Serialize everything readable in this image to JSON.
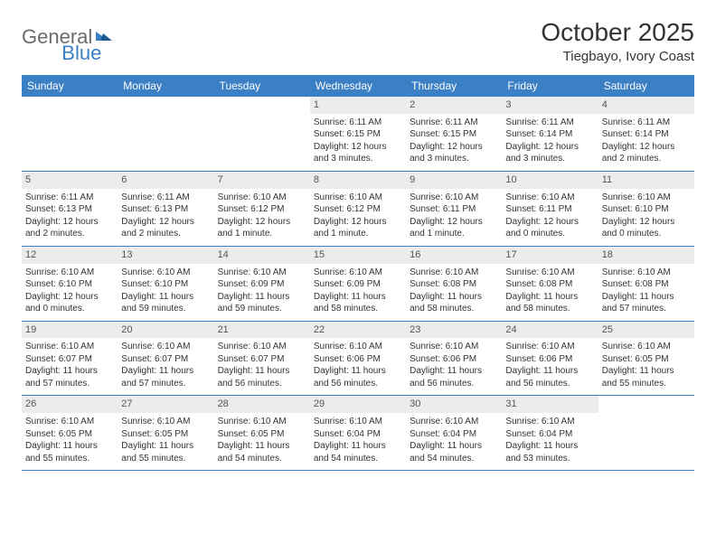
{
  "logo": {
    "text1": "General",
    "text2": "Blue"
  },
  "title": "October 2025",
  "location": "Tiegbayo, Ivory Coast",
  "colors": {
    "header_bg": "#3b7fc4",
    "header_text": "#ffffff",
    "daynum_bg": "#ececec",
    "border": "#3b7fc4",
    "logo_gray": "#6b6b6b",
    "logo_blue": "#3b7fc4"
  },
  "weekdays": [
    "Sunday",
    "Monday",
    "Tuesday",
    "Wednesday",
    "Thursday",
    "Friday",
    "Saturday"
  ],
  "weeks": [
    [
      {
        "empty": true
      },
      {
        "empty": true
      },
      {
        "empty": true
      },
      {
        "day": "1",
        "sunrise": "Sunrise: 6:11 AM",
        "sunset": "Sunset: 6:15 PM",
        "daylight": "Daylight: 12 hours and 3 minutes."
      },
      {
        "day": "2",
        "sunrise": "Sunrise: 6:11 AM",
        "sunset": "Sunset: 6:15 PM",
        "daylight": "Daylight: 12 hours and 3 minutes."
      },
      {
        "day": "3",
        "sunrise": "Sunrise: 6:11 AM",
        "sunset": "Sunset: 6:14 PM",
        "daylight": "Daylight: 12 hours and 3 minutes."
      },
      {
        "day": "4",
        "sunrise": "Sunrise: 6:11 AM",
        "sunset": "Sunset: 6:14 PM",
        "daylight": "Daylight: 12 hours and 2 minutes."
      }
    ],
    [
      {
        "day": "5",
        "sunrise": "Sunrise: 6:11 AM",
        "sunset": "Sunset: 6:13 PM",
        "daylight": "Daylight: 12 hours and 2 minutes."
      },
      {
        "day": "6",
        "sunrise": "Sunrise: 6:11 AM",
        "sunset": "Sunset: 6:13 PM",
        "daylight": "Daylight: 12 hours and 2 minutes."
      },
      {
        "day": "7",
        "sunrise": "Sunrise: 6:10 AM",
        "sunset": "Sunset: 6:12 PM",
        "daylight": "Daylight: 12 hours and 1 minute."
      },
      {
        "day": "8",
        "sunrise": "Sunrise: 6:10 AM",
        "sunset": "Sunset: 6:12 PM",
        "daylight": "Daylight: 12 hours and 1 minute."
      },
      {
        "day": "9",
        "sunrise": "Sunrise: 6:10 AM",
        "sunset": "Sunset: 6:11 PM",
        "daylight": "Daylight: 12 hours and 1 minute."
      },
      {
        "day": "10",
        "sunrise": "Sunrise: 6:10 AM",
        "sunset": "Sunset: 6:11 PM",
        "daylight": "Daylight: 12 hours and 0 minutes."
      },
      {
        "day": "11",
        "sunrise": "Sunrise: 6:10 AM",
        "sunset": "Sunset: 6:10 PM",
        "daylight": "Daylight: 12 hours and 0 minutes."
      }
    ],
    [
      {
        "day": "12",
        "sunrise": "Sunrise: 6:10 AM",
        "sunset": "Sunset: 6:10 PM",
        "daylight": "Daylight: 12 hours and 0 minutes."
      },
      {
        "day": "13",
        "sunrise": "Sunrise: 6:10 AM",
        "sunset": "Sunset: 6:10 PM",
        "daylight": "Daylight: 11 hours and 59 minutes."
      },
      {
        "day": "14",
        "sunrise": "Sunrise: 6:10 AM",
        "sunset": "Sunset: 6:09 PM",
        "daylight": "Daylight: 11 hours and 59 minutes."
      },
      {
        "day": "15",
        "sunrise": "Sunrise: 6:10 AM",
        "sunset": "Sunset: 6:09 PM",
        "daylight": "Daylight: 11 hours and 58 minutes."
      },
      {
        "day": "16",
        "sunrise": "Sunrise: 6:10 AM",
        "sunset": "Sunset: 6:08 PM",
        "daylight": "Daylight: 11 hours and 58 minutes."
      },
      {
        "day": "17",
        "sunrise": "Sunrise: 6:10 AM",
        "sunset": "Sunset: 6:08 PM",
        "daylight": "Daylight: 11 hours and 58 minutes."
      },
      {
        "day": "18",
        "sunrise": "Sunrise: 6:10 AM",
        "sunset": "Sunset: 6:08 PM",
        "daylight": "Daylight: 11 hours and 57 minutes."
      }
    ],
    [
      {
        "day": "19",
        "sunrise": "Sunrise: 6:10 AM",
        "sunset": "Sunset: 6:07 PM",
        "daylight": "Daylight: 11 hours and 57 minutes."
      },
      {
        "day": "20",
        "sunrise": "Sunrise: 6:10 AM",
        "sunset": "Sunset: 6:07 PM",
        "daylight": "Daylight: 11 hours and 57 minutes."
      },
      {
        "day": "21",
        "sunrise": "Sunrise: 6:10 AM",
        "sunset": "Sunset: 6:07 PM",
        "daylight": "Daylight: 11 hours and 56 minutes."
      },
      {
        "day": "22",
        "sunrise": "Sunrise: 6:10 AM",
        "sunset": "Sunset: 6:06 PM",
        "daylight": "Daylight: 11 hours and 56 minutes."
      },
      {
        "day": "23",
        "sunrise": "Sunrise: 6:10 AM",
        "sunset": "Sunset: 6:06 PM",
        "daylight": "Daylight: 11 hours and 56 minutes."
      },
      {
        "day": "24",
        "sunrise": "Sunrise: 6:10 AM",
        "sunset": "Sunset: 6:06 PM",
        "daylight": "Daylight: 11 hours and 56 minutes."
      },
      {
        "day": "25",
        "sunrise": "Sunrise: 6:10 AM",
        "sunset": "Sunset: 6:05 PM",
        "daylight": "Daylight: 11 hours and 55 minutes."
      }
    ],
    [
      {
        "day": "26",
        "sunrise": "Sunrise: 6:10 AM",
        "sunset": "Sunset: 6:05 PM",
        "daylight": "Daylight: 11 hours and 55 minutes."
      },
      {
        "day": "27",
        "sunrise": "Sunrise: 6:10 AM",
        "sunset": "Sunset: 6:05 PM",
        "daylight": "Daylight: 11 hours and 55 minutes."
      },
      {
        "day": "28",
        "sunrise": "Sunrise: 6:10 AM",
        "sunset": "Sunset: 6:05 PM",
        "daylight": "Daylight: 11 hours and 54 minutes."
      },
      {
        "day": "29",
        "sunrise": "Sunrise: 6:10 AM",
        "sunset": "Sunset: 6:04 PM",
        "daylight": "Daylight: 11 hours and 54 minutes."
      },
      {
        "day": "30",
        "sunrise": "Sunrise: 6:10 AM",
        "sunset": "Sunset: 6:04 PM",
        "daylight": "Daylight: 11 hours and 54 minutes."
      },
      {
        "day": "31",
        "sunrise": "Sunrise: 6:10 AM",
        "sunset": "Sunset: 6:04 PM",
        "daylight": "Daylight: 11 hours and 53 minutes."
      },
      {
        "empty": true
      }
    ]
  ]
}
